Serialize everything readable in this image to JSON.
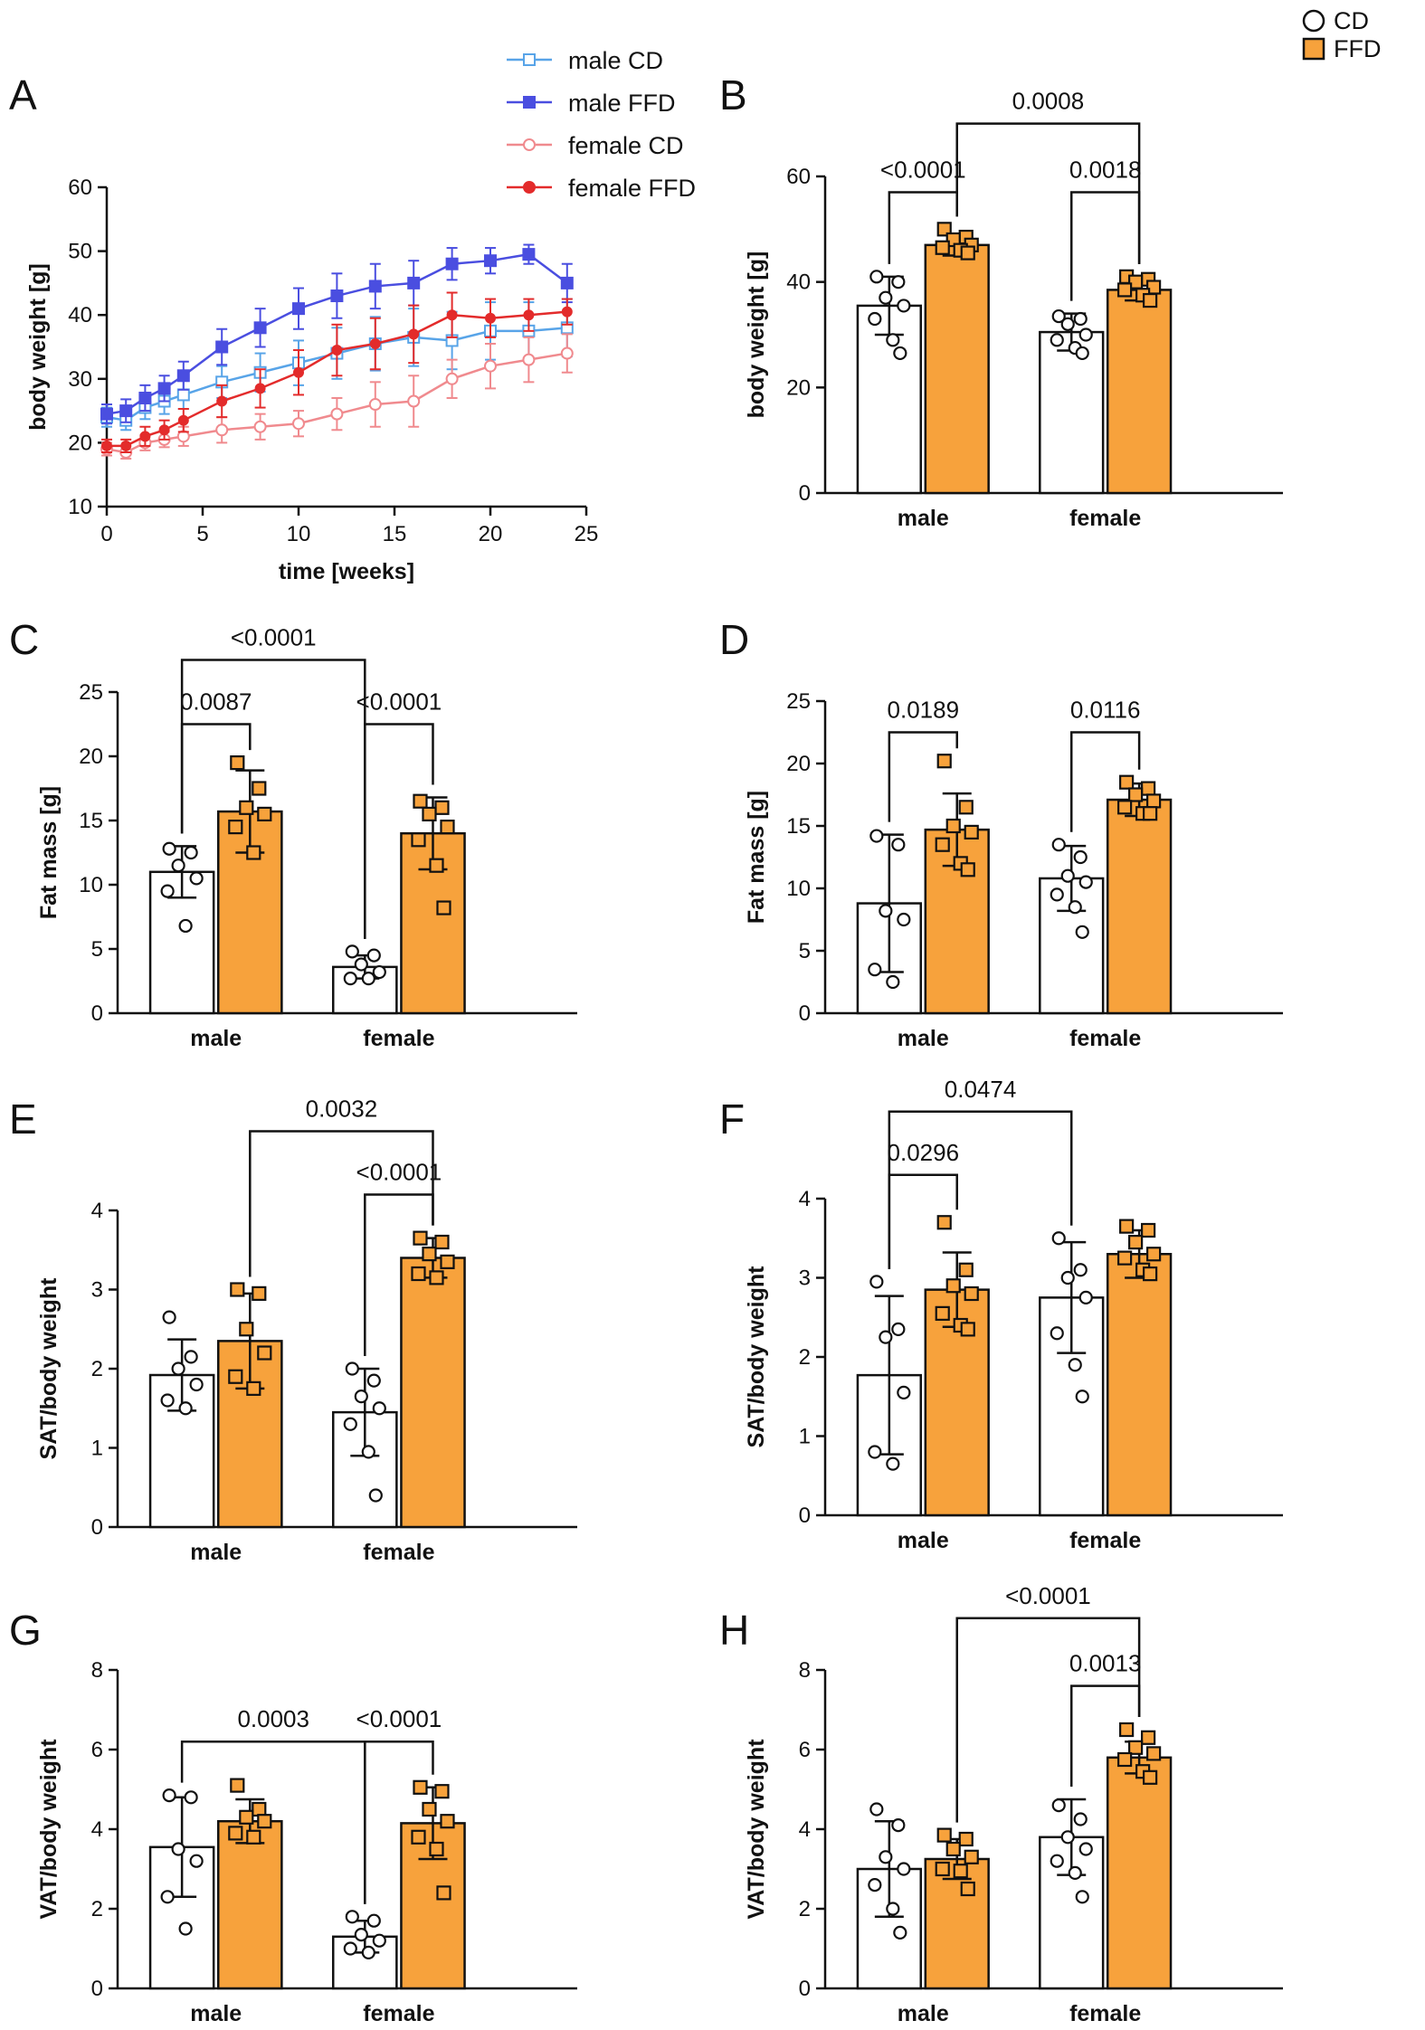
{
  "legend": {
    "items": [
      {
        "label": "CD",
        "marker": "open-circle",
        "fill": "#ffffff"
      },
      {
        "label": "FFD",
        "marker": "filled-square",
        "fill": "#f7a23c"
      }
    ]
  },
  "colors": {
    "ffd": "#f7a23c",
    "cd": "#ffffff",
    "male_cd": "#58a4e8",
    "male_ffd": "#4a4ee0",
    "female_cd": "#f08a8e",
    "female_ffd": "#e32b2b",
    "ink": "#111111"
  },
  "chart_data": [
    {
      "id": "A",
      "letter": "A",
      "type": "line",
      "xlabel": "time [weeks]",
      "ylabel": "body weight [g]",
      "xlim": [
        0,
        25
      ],
      "ylim": [
        10,
        60
      ],
      "xticks": [
        0,
        5,
        10,
        15,
        20,
        25
      ],
      "yticks": [
        10,
        20,
        30,
        40,
        50,
        60
      ],
      "series": [
        {
          "name": "male CD",
          "color": "#58a4e8",
          "marker": "open-square",
          "x": [
            0,
            1,
            2,
            3,
            4,
            6,
            8,
            10,
            12,
            14,
            16,
            18,
            20,
            22,
            24
          ],
          "y": [
            24,
            23.5,
            25.5,
            26.5,
            27.5,
            29.5,
            31,
            32.5,
            34,
            35.5,
            36.5,
            36,
            37.5,
            37.5,
            38
          ],
          "err": [
            1.5,
            1.5,
            1.8,
            2,
            2.2,
            2.5,
            3,
            3.5,
            4,
            4.2,
            4.5,
            4.5,
            4.5,
            4.5,
            4.5
          ]
        },
        {
          "name": "male FFD",
          "color": "#4a4ee0",
          "marker": "filled-square",
          "x": [
            0,
            1,
            2,
            3,
            4,
            6,
            8,
            10,
            12,
            14,
            16,
            18,
            20,
            22,
            24
          ],
          "y": [
            24.5,
            25,
            27,
            28.5,
            30.5,
            35,
            38,
            41,
            43,
            44.5,
            45,
            48,
            48.5,
            49.5,
            45
          ],
          "err": [
            1.5,
            1.8,
            2,
            2,
            2.2,
            2.8,
            3,
            3.2,
            3.5,
            3.5,
            3.5,
            2.5,
            2,
            1.5,
            3
          ]
        },
        {
          "name": "female CD",
          "color": "#f08a8e",
          "marker": "open-circle",
          "x": [
            0,
            1,
            2,
            3,
            4,
            6,
            8,
            10,
            12,
            14,
            16,
            18,
            20,
            22,
            24
          ],
          "y": [
            19,
            18.5,
            20,
            20.5,
            21,
            22,
            22.5,
            23,
            24.5,
            26,
            26.5,
            30,
            32,
            33,
            34
          ],
          "err": [
            1,
            1,
            1.2,
            1.2,
            1.5,
            2,
            2,
            2,
            2.5,
            3.5,
            4,
            3,
            3.5,
            3.5,
            3
          ]
        },
        {
          "name": "female FFD",
          "color": "#e32b2b",
          "marker": "filled-circle",
          "x": [
            0,
            1,
            2,
            3,
            4,
            6,
            8,
            10,
            12,
            14,
            16,
            18,
            20,
            22,
            24
          ],
          "y": [
            19.5,
            19.5,
            21,
            22,
            23.5,
            26.5,
            28.5,
            31,
            34.5,
            35.5,
            37,
            40,
            39.5,
            40,
            40.5
          ],
          "err": [
            1,
            1,
            1.5,
            1.5,
            1.8,
            2.5,
            3,
            3.5,
            4,
            4,
            4.5,
            3.5,
            3,
            2.5,
            2
          ]
        }
      ]
    },
    {
      "id": "B",
      "letter": "B",
      "type": "bar",
      "ylabel": "body weight [g]",
      "ylim": [
        0,
        60
      ],
      "yticks": [
        0,
        20,
        40,
        60
      ],
      "categories": [
        "male",
        "female"
      ],
      "series": [
        {
          "name": "CD",
          "values": [
            35.5,
            30.5
          ],
          "sd": [
            5.5,
            3.5
          ],
          "points": [
            [
              41,
              40,
              37,
              35.5,
              33,
              29,
              26.5
            ],
            [
              33.5,
              33,
              32,
              30,
              29,
              27.5,
              26.5
            ]
          ]
        },
        {
          "name": "FFD",
          "values": [
            47,
            38.5
          ],
          "sd": [
            2,
            2
          ],
          "points": [
            [
              50,
              48.5,
              48,
              47,
              46.5,
              46,
              45.5
            ],
            [
              41,
              40.5,
              40,
              39,
              38.5,
              37.5,
              36.5
            ]
          ]
        }
      ],
      "comparisons": [
        {
          "label": "<0.0001",
          "from": [
            0,
            0
          ],
          "to": [
            0,
            1
          ],
          "y": 57
        },
        {
          "label": "0.0018",
          "from": [
            1,
            0
          ],
          "to": [
            1,
            1
          ],
          "y": 57
        },
        {
          "label": "0.0008",
          "from": [
            0,
            1
          ],
          "to": [
            1,
            1
          ],
          "y": 70
        }
      ]
    },
    {
      "id": "C",
      "letter": "C",
      "type": "bar",
      "ylabel": "Fat mass [g]",
      "ylim": [
        0,
        25
      ],
      "yticks": [
        0,
        5,
        10,
        15,
        20,
        25
      ],
      "categories": [
        "male",
        "female"
      ],
      "series": [
        {
          "name": "CD",
          "values": [
            11,
            3.6
          ],
          "sd": [
            2,
            0.9
          ],
          "points": [
            [
              12.8,
              12.5,
              11.5,
              10.5,
              9.5,
              6.8
            ],
            [
              4.8,
              4.5,
              3.8,
              3.2,
              2.7,
              2.7
            ]
          ]
        },
        {
          "name": "FFD",
          "values": [
            15.7,
            14
          ],
          "sd": [
            3.2,
            2.8
          ],
          "points": [
            [
              19.5,
              17.5,
              16,
              15.5,
              14.5,
              12.5
            ],
            [
              16.5,
              16,
              15.5,
              14.5,
              13.5,
              11.5,
              8.2
            ]
          ]
        }
      ],
      "comparisons": [
        {
          "label": "0.0087",
          "from": [
            0,
            0
          ],
          "to": [
            0,
            1
          ],
          "y": 22.5
        },
        {
          "label": "<0.0001",
          "from": [
            1,
            0
          ],
          "to": [
            1,
            1
          ],
          "y": 22.5
        },
        {
          "label": "<0.0001",
          "from": [
            0,
            0
          ],
          "to": [
            1,
            0
          ],
          "y": 27.5
        }
      ]
    },
    {
      "id": "D",
      "letter": "D",
      "type": "bar",
      "ylabel": "Fat mass [g]",
      "ylim": [
        0,
        25
      ],
      "yticks": [
        0,
        5,
        10,
        15,
        20,
        25
      ],
      "categories": [
        "male",
        "female"
      ],
      "series": [
        {
          "name": "CD",
          "values": [
            8.8,
            10.8
          ],
          "sd": [
            5.5,
            2.6
          ],
          "points": [
            [
              14.2,
              13.5,
              8.2,
              7.5,
              3.5,
              2.5
            ],
            [
              13.5,
              12.5,
              11,
              10.5,
              9.5,
              8.5,
              6.5
            ]
          ]
        },
        {
          "name": "FFD",
          "values": [
            14.7,
            17.1
          ],
          "sd": [
            2.9,
            1.3
          ],
          "points": [
            [
              20.2,
              16.5,
              15,
              14.5,
              13.5,
              12,
              11.5
            ],
            [
              18.5,
              18,
              17.5,
              17,
              16.5,
              16,
              16
            ]
          ]
        }
      ],
      "comparisons": [
        {
          "label": "0.0189",
          "from": [
            0,
            0
          ],
          "to": [
            0,
            1
          ],
          "y": 22.5
        },
        {
          "label": "0.0116",
          "from": [
            1,
            0
          ],
          "to": [
            1,
            1
          ],
          "y": 22.5
        }
      ]
    },
    {
      "id": "E",
      "letter": "E",
      "type": "bar",
      "ylabel": "SAT/body weight",
      "ylim": [
        0,
        4
      ],
      "yticks": [
        0,
        1,
        2,
        3,
        4
      ],
      "categories": [
        "male",
        "female"
      ],
      "series": [
        {
          "name": "CD",
          "values": [
            1.92,
            1.45
          ],
          "sd": [
            0.45,
            0.55
          ],
          "points": [
            [
              2.65,
              2.15,
              2,
              1.8,
              1.6,
              1.5
            ],
            [
              2,
              1.85,
              1.65,
              1.5,
              1.3,
              0.95,
              0.4
            ]
          ]
        },
        {
          "name": "FFD",
          "values": [
            2.35,
            3.4
          ],
          "sd": [
            0.6,
            0.25
          ],
          "points": [
            [
              3,
              2.95,
              2.5,
              2.2,
              1.9,
              1.75
            ],
            [
              3.65,
              3.6,
              3.45,
              3.35,
              3.2,
              3.15
            ]
          ]
        }
      ],
      "comparisons": [
        {
          "label": "<0.0001",
          "from": [
            1,
            0
          ],
          "to": [
            1,
            1
          ],
          "y": 4.2
        },
        {
          "label": "0.0032",
          "from": [
            0,
            1
          ],
          "to": [
            1,
            1
          ],
          "y": 5.0
        }
      ]
    },
    {
      "id": "F",
      "letter": "F",
      "type": "bar",
      "ylabel": "SAT/body weight",
      "ylim": [
        0,
        4
      ],
      "yticks": [
        0,
        1,
        2,
        3,
        4
      ],
      "categories": [
        "male",
        "female"
      ],
      "series": [
        {
          "name": "CD",
          "values": [
            1.77,
            2.75
          ],
          "sd": [
            1.0,
            0.7
          ],
          "points": [
            [
              2.95,
              2.35,
              2.25,
              1.55,
              0.8,
              0.65
            ],
            [
              3.5,
              3.1,
              3.0,
              2.75,
              2.3,
              1.9,
              1.5
            ]
          ]
        },
        {
          "name": "FFD",
          "values": [
            2.85,
            3.3
          ],
          "sd": [
            0.47,
            0.3
          ],
          "points": [
            [
              3.7,
              3.1,
              2.9,
              2.8,
              2.55,
              2.4,
              2.35
            ],
            [
              3.65,
              3.6,
              3.45,
              3.3,
              3.25,
              3.1,
              3.05
            ]
          ]
        }
      ],
      "comparisons": [
        {
          "label": "0.0296",
          "from": [
            0,
            0
          ],
          "to": [
            0,
            1
          ],
          "y": 4.3
        },
        {
          "label": "0.0474",
          "from": [
            0,
            0
          ],
          "to": [
            1,
            0
          ],
          "y": 5.1
        }
      ]
    },
    {
      "id": "G",
      "letter": "G",
      "type": "bar",
      "ylabel": "VAT/body weight",
      "ylim": [
        0,
        8
      ],
      "yticks": [
        0,
        2,
        4,
        6,
        8
      ],
      "categories": [
        "male",
        "female"
      ],
      "series": [
        {
          "name": "CD",
          "values": [
            3.55,
            1.3
          ],
          "sd": [
            1.25,
            0.4
          ],
          "points": [
            [
              4.85,
              4.8,
              3.5,
              3.2,
              2.3,
              1.5
            ],
            [
              1.8,
              1.7,
              1.35,
              1.2,
              1.0,
              0.9
            ]
          ]
        },
        {
          "name": "FFD",
          "values": [
            4.2,
            4.15
          ],
          "sd": [
            0.55,
            0.9
          ],
          "points": [
            [
              5.1,
              4.5,
              4.3,
              4.2,
              3.9,
              3.8
            ],
            [
              5.05,
              4.95,
              4.5,
              4.2,
              3.8,
              3.5,
              2.4
            ]
          ]
        }
      ],
      "comparisons": [
        {
          "label": "<0.0001",
          "from": [
            1,
            0
          ],
          "to": [
            1,
            1
          ],
          "y": 6.2
        },
        {
          "label": "0.0003",
          "from": [
            0,
            0
          ],
          "to": [
            1,
            0
          ],
          "y": 6.2
        }
      ]
    },
    {
      "id": "H",
      "letter": "H",
      "type": "bar",
      "ylabel": "VAT/body weight",
      "ylim": [
        0,
        8
      ],
      "yticks": [
        0,
        2,
        4,
        6,
        8
      ],
      "categories": [
        "male",
        "female"
      ],
      "series": [
        {
          "name": "CD",
          "values": [
            3.0,
            3.8
          ],
          "sd": [
            1.2,
            0.95
          ],
          "points": [
            [
              4.5,
              4.1,
              3.3,
              3.0,
              2.6,
              2.0,
              1.4
            ],
            [
              4.6,
              4.25,
              3.8,
              3.5,
              3.2,
              2.9,
              2.3
            ]
          ]
        },
        {
          "name": "FFD",
          "values": [
            3.25,
            5.8
          ],
          "sd": [
            0.5,
            0.4
          ],
          "points": [
            [
              3.85,
              3.75,
              3.5,
              3.3,
              3.0,
              2.95,
              2.5
            ],
            [
              6.5,
              6.3,
              6.05,
              5.9,
              5.75,
              5.45,
              5.3
            ]
          ]
        }
      ],
      "comparisons": [
        {
          "label": "0.0013",
          "from": [
            1,
            0
          ],
          "to": [
            1,
            1
          ],
          "y": 7.6
        },
        {
          "label": "<0.0001",
          "from": [
            0,
            1
          ],
          "to": [
            1,
            1
          ],
          "y": 9.3
        }
      ]
    }
  ]
}
